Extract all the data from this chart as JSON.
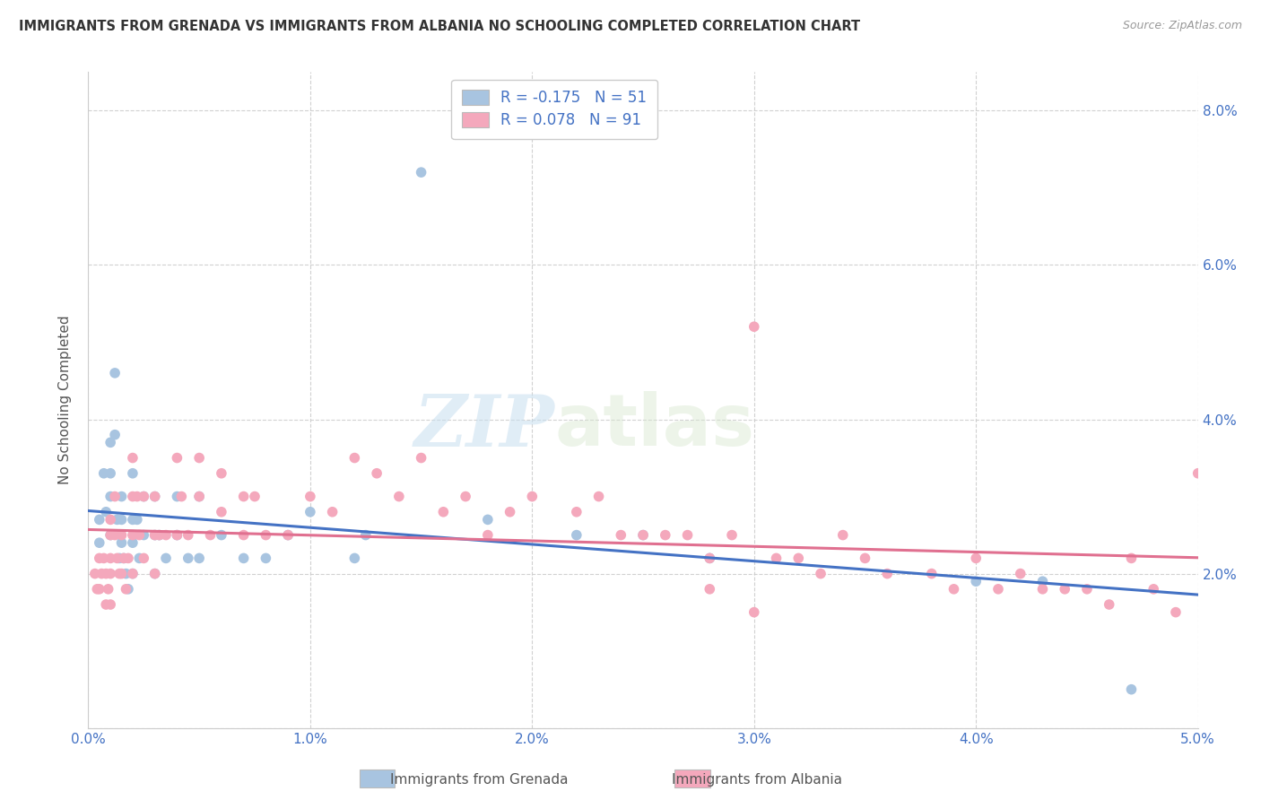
{
  "title": "IMMIGRANTS FROM GRENADA VS IMMIGRANTS FROM ALBANIA NO SCHOOLING COMPLETED CORRELATION CHART",
  "source": "Source: ZipAtlas.com",
  "ylabel": "No Schooling Completed",
  "xlim": [
    0.0,
    0.05
  ],
  "ylim": [
    0.0,
    0.085
  ],
  "xticks": [
    0.0,
    0.01,
    0.02,
    0.03,
    0.04,
    0.05
  ],
  "yticks": [
    0.0,
    0.02,
    0.04,
    0.06,
    0.08
  ],
  "xtick_labels": [
    "0.0%",
    "1.0%",
    "2.0%",
    "3.0%",
    "4.0%",
    "5.0%"
  ],
  "ytick_labels": [
    "",
    "2.0%",
    "4.0%",
    "6.0%",
    "8.0%"
  ],
  "grenada_color": "#a8c4e0",
  "albania_color": "#f4a8bc",
  "grenada_line_color": "#4472c4",
  "albania_line_color": "#e07090",
  "grenada_R": -0.175,
  "grenada_N": 51,
  "albania_R": 0.078,
  "albania_N": 91,
  "watermark_zip": "ZIP",
  "watermark_atlas": "atlas",
  "background_color": "#ffffff",
  "grid_color": "#cccccc",
  "legend_label_grenada": "Immigrants from Grenada",
  "legend_label_albania": "Immigrants from Albania",
  "grenada_x": [
    0.0005,
    0.0005,
    0.0007,
    0.0008,
    0.001,
    0.001,
    0.001,
    0.001,
    0.0012,
    0.0012,
    0.0013,
    0.0014,
    0.0015,
    0.0015,
    0.0015,
    0.0016,
    0.0017,
    0.0018,
    0.002,
    0.002,
    0.002,
    0.002,
    0.0022,
    0.0023,
    0.0025,
    0.0025,
    0.003,
    0.003,
    0.003,
    0.0032,
    0.0035,
    0.004,
    0.004,
    0.0045,
    0.005,
    0.005,
    0.006,
    0.007,
    0.008,
    0.009,
    0.01,
    0.012,
    0.0125,
    0.015,
    0.018,
    0.022,
    0.025,
    0.028,
    0.04,
    0.043,
    0.047
  ],
  "grenada_y": [
    0.027,
    0.024,
    0.033,
    0.028,
    0.037,
    0.033,
    0.03,
    0.025,
    0.046,
    0.038,
    0.027,
    0.022,
    0.03,
    0.027,
    0.024,
    0.022,
    0.02,
    0.018,
    0.033,
    0.027,
    0.024,
    0.02,
    0.027,
    0.022,
    0.03,
    0.025,
    0.03,
    0.025,
    0.02,
    0.025,
    0.022,
    0.03,
    0.025,
    0.022,
    0.03,
    0.022,
    0.025,
    0.022,
    0.022,
    0.025,
    0.028,
    0.022,
    0.025,
    0.072,
    0.027,
    0.025,
    0.025,
    0.022,
    0.019,
    0.019,
    0.005
  ],
  "albania_x": [
    0.0003,
    0.0004,
    0.0005,
    0.0005,
    0.0006,
    0.0007,
    0.0008,
    0.0008,
    0.0009,
    0.001,
    0.001,
    0.001,
    0.001,
    0.001,
    0.0012,
    0.0012,
    0.0013,
    0.0014,
    0.0015,
    0.0015,
    0.0016,
    0.0017,
    0.0018,
    0.002,
    0.002,
    0.002,
    0.002,
    0.0022,
    0.0023,
    0.0025,
    0.0025,
    0.003,
    0.003,
    0.003,
    0.0032,
    0.0035,
    0.004,
    0.004,
    0.0042,
    0.0045,
    0.005,
    0.005,
    0.0055,
    0.006,
    0.006,
    0.007,
    0.007,
    0.0075,
    0.008,
    0.009,
    0.01,
    0.011,
    0.012,
    0.013,
    0.014,
    0.015,
    0.016,
    0.017,
    0.018,
    0.019,
    0.02,
    0.022,
    0.023,
    0.024,
    0.025,
    0.026,
    0.027,
    0.028,
    0.029,
    0.03,
    0.031,
    0.032,
    0.033,
    0.035,
    0.036,
    0.038,
    0.039,
    0.04,
    0.041,
    0.042,
    0.043,
    0.044,
    0.045,
    0.046,
    0.047,
    0.048,
    0.049,
    0.05,
    0.03,
    0.028,
    0.034
  ],
  "albania_y": [
    0.02,
    0.018,
    0.022,
    0.018,
    0.02,
    0.022,
    0.02,
    0.016,
    0.018,
    0.027,
    0.025,
    0.022,
    0.02,
    0.016,
    0.03,
    0.025,
    0.022,
    0.02,
    0.025,
    0.02,
    0.022,
    0.018,
    0.022,
    0.035,
    0.03,
    0.025,
    0.02,
    0.03,
    0.025,
    0.03,
    0.022,
    0.03,
    0.025,
    0.02,
    0.025,
    0.025,
    0.035,
    0.025,
    0.03,
    0.025,
    0.035,
    0.03,
    0.025,
    0.033,
    0.028,
    0.03,
    0.025,
    0.03,
    0.025,
    0.025,
    0.03,
    0.028,
    0.035,
    0.033,
    0.03,
    0.035,
    0.028,
    0.03,
    0.025,
    0.028,
    0.03,
    0.028,
    0.03,
    0.025,
    0.025,
    0.025,
    0.025,
    0.022,
    0.025,
    0.052,
    0.022,
    0.022,
    0.02,
    0.022,
    0.02,
    0.02,
    0.018,
    0.022,
    0.018,
    0.02,
    0.018,
    0.018,
    0.018,
    0.016,
    0.022,
    0.018,
    0.015,
    0.033,
    0.015,
    0.018,
    0.025
  ]
}
